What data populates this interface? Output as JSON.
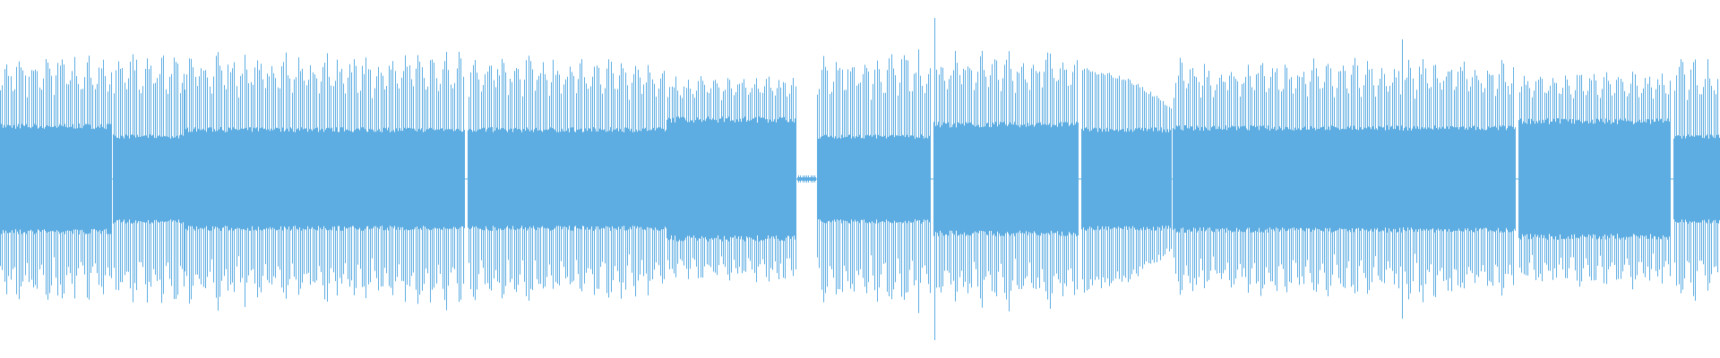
{
  "waveform": {
    "color": "#5dade2",
    "background": "#ffffff",
    "amplitude_scale": "normalized 0-1",
    "segments": [
      {
        "start": 0.0,
        "end": 0.065,
        "core": 0.31,
        "peak": 0.7,
        "shape": "pulsed"
      },
      {
        "start": 0.066,
        "end": 0.107,
        "core": 0.25,
        "peak": 0.74,
        "shape": "pulsed"
      },
      {
        "start": 0.107,
        "end": 0.27,
        "core": 0.29,
        "peak": 0.72,
        "shape": "pulsed"
      },
      {
        "start": 0.272,
        "end": 0.387,
        "core": 0.29,
        "peak": 0.7,
        "shape": "pulsed"
      },
      {
        "start": 0.388,
        "end": 0.463,
        "core": 0.35,
        "peak": 0.58,
        "shape": "pulsed"
      },
      {
        "start": 0.464,
        "end": 0.474,
        "core": 0.01,
        "peak": 0.02,
        "shape": "silence"
      },
      {
        "start": 0.475,
        "end": 0.541,
        "core": 0.25,
        "peak": 0.74,
        "shape": "pulsed"
      },
      {
        "start": 0.543,
        "end": 0.627,
        "core": 0.32,
        "peak": 0.72,
        "shape": "pulsed"
      },
      {
        "start": 0.629,
        "end": 0.681,
        "core": 0.29,
        "peak": 0.62,
        "shape": "decay",
        "peak_end": 0.4
      },
      {
        "start": 0.682,
        "end": 0.881,
        "core": 0.3,
        "peak": 0.68,
        "shape": "pulsed"
      },
      {
        "start": 0.883,
        "end": 0.971,
        "core": 0.34,
        "peak": 0.6,
        "shape": "pulsed"
      },
      {
        "start": 0.973,
        "end": 1.0,
        "core": 0.25,
        "peak": 0.7,
        "shape": "pulsed"
      }
    ],
    "transients": [
      {
        "time": 0.543,
        "amplitude": 0.9
      },
      {
        "time": 0.815,
        "amplitude": 0.78
      }
    ]
  }
}
